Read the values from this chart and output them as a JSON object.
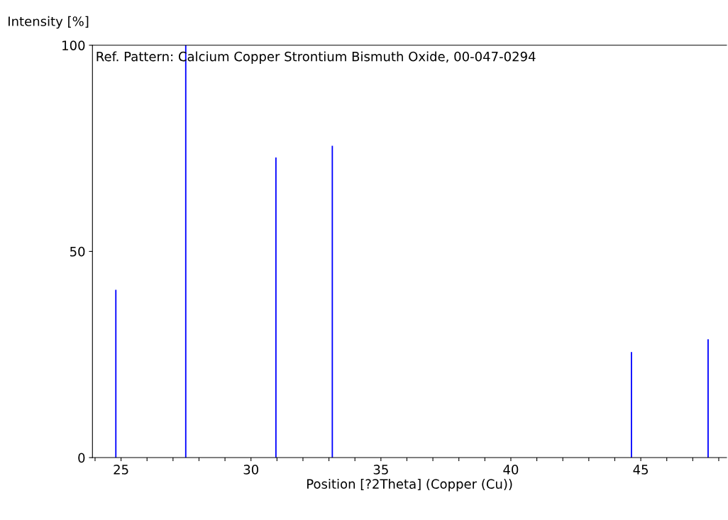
{
  "chart_data": {
    "type": "bar",
    "xlabel": "Position [?2Theta] (Copper (Cu))",
    "ylabel": "Intensity [%]",
    "annotations": [
      "Ref. Pattern: Calcium Copper Strontium Bismuth Oxide, 00-047-0294"
    ],
    "x": [
      24.8,
      27.49,
      30.96,
      33.13,
      44.64,
      47.59
    ],
    "values": [
      40.7,
      100,
      72.8,
      75.6,
      25.6,
      28.7
    ],
    "color": "#0000ff",
    "xlim": [
      23.9,
      48.3
    ],
    "xticks": [
      {
        "value": 24,
        "label": null
      },
      25,
      {
        "value": 26,
        "label": null
      },
      {
        "value": 27,
        "label": null
      },
      {
        "value": 28,
        "label": null
      },
      {
        "value": 29,
        "label": null
      },
      30,
      {
        "value": 31,
        "label": null
      },
      {
        "value": 32,
        "label": null
      },
      {
        "value": 33,
        "label": null
      },
      {
        "value": 34,
        "label": null
      },
      35,
      {
        "value": 36,
        "label": null
      },
      {
        "value": 37,
        "label": null
      },
      {
        "value": 38,
        "label": null
      },
      {
        "value": 39,
        "label": null
      },
      40,
      {
        "value": 41,
        "label": null
      },
      {
        "value": 42,
        "label": null
      },
      {
        "value": 43,
        "label": null
      },
      {
        "value": 44,
        "label": null
      },
      45,
      {
        "value": 46,
        "label": null
      },
      {
        "value": 47,
        "label": null
      },
      {
        "value": 48,
        "label": null
      }
    ],
    "ylim": [
      0,
      100
    ],
    "yticks": [
      0,
      50,
      100
    ],
    "grid": false
  }
}
